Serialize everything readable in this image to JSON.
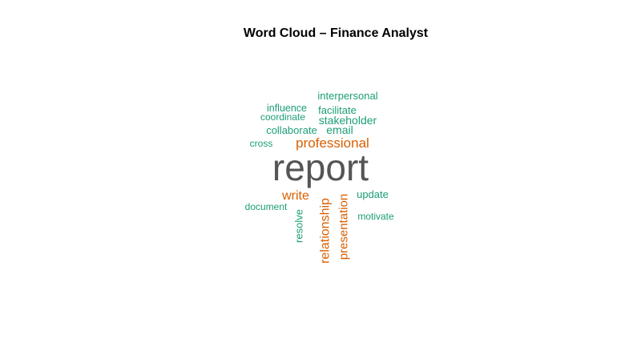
{
  "chart_data": {
    "type": "wordcloud",
    "title": "Word Cloud – Finance Analyst",
    "colors": {
      "dominant": "#555555",
      "orange": "#d95f02",
      "green": "#1b9e77"
    },
    "words": [
      {
        "text": "report",
        "weight": 10,
        "color": "dominant",
        "rotated": false
      },
      {
        "text": "professional",
        "weight": 4.2,
        "color": "orange",
        "rotated": false
      },
      {
        "text": "write",
        "weight": 4.0,
        "color": "orange",
        "rotated": false
      },
      {
        "text": "relationship",
        "weight": 3.9,
        "color": "orange",
        "rotated": true
      },
      {
        "text": "presentation",
        "weight": 3.7,
        "color": "orange",
        "rotated": true
      },
      {
        "text": "stakeholder",
        "weight": 3.3,
        "color": "green",
        "rotated": false
      },
      {
        "text": "email",
        "weight": 3.3,
        "color": "green",
        "rotated": false
      },
      {
        "text": "interpersonal",
        "weight": 3.1,
        "color": "green",
        "rotated": false
      },
      {
        "text": "update",
        "weight": 3.1,
        "color": "green",
        "rotated": false
      },
      {
        "text": "resolve",
        "weight": 3.0,
        "color": "green",
        "rotated": true
      },
      {
        "text": "facilitate",
        "weight": 3.0,
        "color": "green",
        "rotated": false
      },
      {
        "text": "collaborate",
        "weight": 3.0,
        "color": "green",
        "rotated": false
      },
      {
        "text": "influence",
        "weight": 2.9,
        "color": "green",
        "rotated": false
      },
      {
        "text": "coordinate",
        "weight": 2.8,
        "color": "green",
        "rotated": false
      },
      {
        "text": "motivate",
        "weight": 2.8,
        "color": "green",
        "rotated": false
      },
      {
        "text": "document",
        "weight": 2.8,
        "color": "green",
        "rotated": false
      },
      {
        "text": "cross",
        "weight": 2.8,
        "color": "green",
        "rotated": false
      }
    ]
  }
}
